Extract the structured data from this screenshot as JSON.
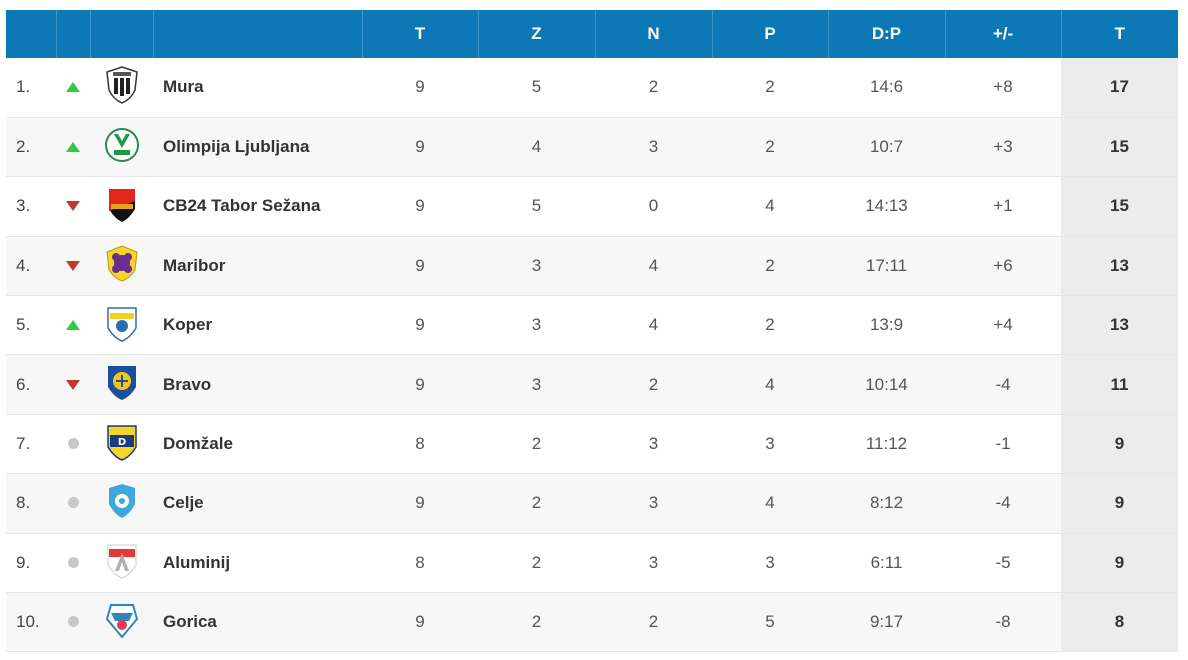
{
  "headers": {
    "played": "T",
    "won": "Z",
    "drawn": "N",
    "lost": "P",
    "goals": "D:P",
    "diff": "+/-",
    "points": "T"
  },
  "rows": [
    {
      "pos": "1.",
      "trend": "up",
      "team": "Mura",
      "crest": "mura-crest-icon",
      "t": "9",
      "z": "5",
      "n": "2",
      "p": "2",
      "dp": "14:6",
      "diff": "+8",
      "pts": "17"
    },
    {
      "pos": "2.",
      "trend": "up",
      "team": "Olimpija Ljubljana",
      "crest": "olimpija-crest-icon",
      "t": "9",
      "z": "4",
      "n": "3",
      "p": "2",
      "dp": "10:7",
      "diff": "+3",
      "pts": "15"
    },
    {
      "pos": "3.",
      "trend": "down",
      "team": "CB24 Tabor Sežana",
      "crest": "tabor-crest-icon",
      "t": "9",
      "z": "5",
      "n": "0",
      "p": "4",
      "dp": "14:13",
      "diff": "+1",
      "pts": "15"
    },
    {
      "pos": "4.",
      "trend": "down",
      "team": "Maribor",
      "crest": "maribor-crest-icon",
      "t": "9",
      "z": "3",
      "n": "4",
      "p": "2",
      "dp": "17:11",
      "diff": "+6",
      "pts": "13"
    },
    {
      "pos": "5.",
      "trend": "up",
      "team": "Koper",
      "crest": "koper-crest-icon",
      "t": "9",
      "z": "3",
      "n": "4",
      "p": "2",
      "dp": "13:9",
      "diff": "+4",
      "pts": "13"
    },
    {
      "pos": "6.",
      "trend": "down",
      "team": "Bravo",
      "crest": "bravo-crest-icon",
      "t": "9",
      "z": "3",
      "n": "2",
      "p": "4",
      "dp": "10:14",
      "diff": "-4",
      "pts": "11"
    },
    {
      "pos": "7.",
      "trend": "same",
      "team": "Domžale",
      "crest": "domzale-crest-icon",
      "t": "8",
      "z": "2",
      "n": "3",
      "p": "3",
      "dp": "11:12",
      "diff": "-1",
      "pts": "9"
    },
    {
      "pos": "8.",
      "trend": "same",
      "team": "Celje",
      "crest": "celje-crest-icon",
      "t": "9",
      "z": "2",
      "n": "3",
      "p": "4",
      "dp": "8:12",
      "diff": "-4",
      "pts": "9"
    },
    {
      "pos": "9.",
      "trend": "same",
      "team": "Aluminij",
      "crest": "aluminij-crest-icon",
      "t": "8",
      "z": "2",
      "n": "3",
      "p": "3",
      "dp": "6:11",
      "diff": "-5",
      "pts": "9"
    },
    {
      "pos": "10.",
      "trend": "same",
      "team": "Gorica",
      "crest": "gorica-crest-icon",
      "t": "9",
      "z": "2",
      "n": "2",
      "p": "5",
      "dp": "9:17",
      "diff": "-8",
      "pts": "8"
    }
  ],
  "colors": {
    "header_bg": "#0c78b6",
    "up": "#2ecc40",
    "down": "#c0392b",
    "same": "#c8c8c8"
  }
}
